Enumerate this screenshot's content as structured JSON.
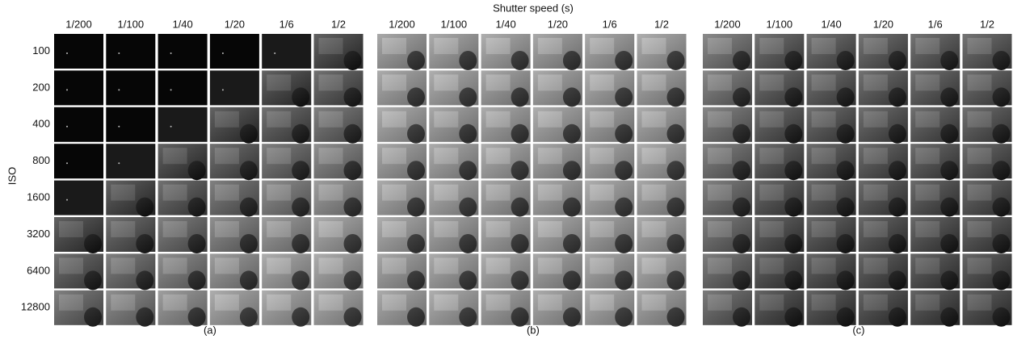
{
  "title": "Shutter speed (s)",
  "row_axis_label": "ISO",
  "rows": [
    "100",
    "200",
    "400",
    "800",
    "1600",
    "3200",
    "6400",
    "12800"
  ],
  "panels": [
    {
      "caption": "(a)",
      "columns": [
        "1/200",
        "1/100",
        "1/40",
        "1/20",
        "1/6",
        "1/2"
      ]
    },
    {
      "caption": "(b)",
      "columns": [
        "1/200",
        "1/100",
        "1/40",
        "1/20",
        "1/6",
        "1/2"
      ]
    },
    {
      "caption": "(c)",
      "columns": [
        "1/200",
        "1/100",
        "1/40",
        "1/20",
        "1/6",
        "1/2"
      ]
    }
  ]
}
